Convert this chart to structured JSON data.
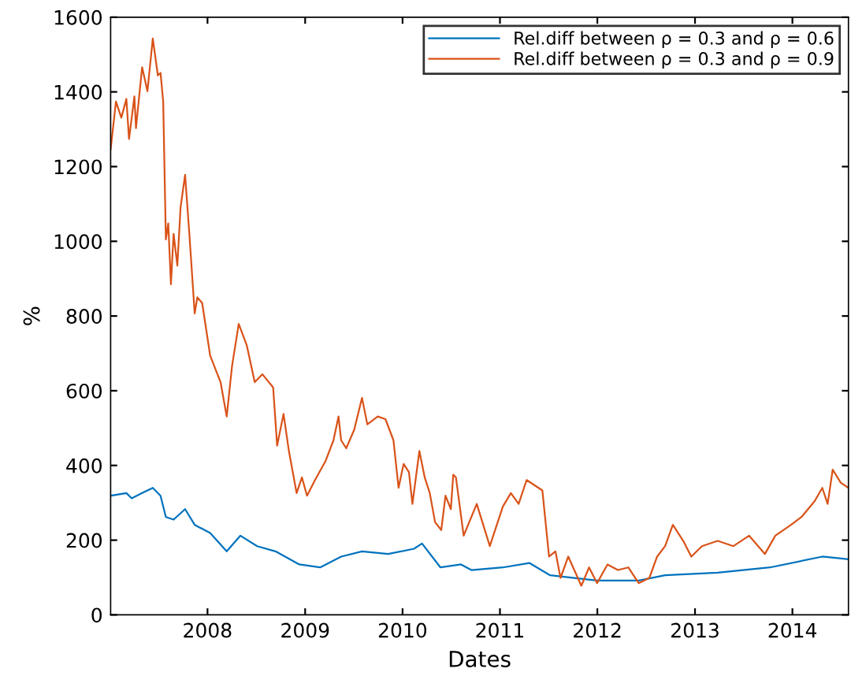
{
  "chart_data": {
    "type": "line",
    "xlabel": "Dates",
    "ylabel": "%",
    "xlim": [
      "2007-01-03",
      "2014-07-30"
    ],
    "xticks": [
      {
        "value": "2008-01-01",
        "label": "2008"
      },
      {
        "value": "2009-01-01",
        "label": "2009"
      },
      {
        "value": "2010-01-01",
        "label": "2010"
      },
      {
        "value": "2011-01-01",
        "label": "2011"
      },
      {
        "value": "2012-01-01",
        "label": "2012"
      },
      {
        "value": "2013-01-01",
        "label": "2013"
      },
      {
        "value": "2014-01-01",
        "label": "2014"
      }
    ],
    "ylim": [
      0,
      1600
    ],
    "yticks": [
      0,
      200,
      400,
      600,
      800,
      1000,
      1200,
      1400,
      1600
    ],
    "grid": false,
    "legend": "top right",
    "marker": "none",
    "line_style": "solid",
    "series": [
      {
        "name": "Rel.diff between ρ = 0.3 and ρ = 0.6",
        "color": "#0072bd",
        "x": [
          "2007-01-03",
          "2007-03-03",
          "2007-03-23",
          "2007-05-01",
          "2007-06-10",
          "2007-07-09",
          "2007-07-29",
          "2007-08-27",
          "2007-10-09",
          "2007-11-14",
          "2008-01-11",
          "2008-03-13",
          "2008-05-03",
          "2008-07-05",
          "2008-09-12",
          "2008-12-10",
          "2009-02-26",
          "2009-05-16",
          "2009-08-02",
          "2009-11-08",
          "2010-02-13",
          "2010-03-15",
          "2010-05-23",
          "2010-08-08",
          "2010-09-16",
          "2011-01-12",
          "2011-04-21",
          "2011-07-08",
          "2011-12-31",
          "2012-06-04",
          "2012-09-11",
          "2013-03-27",
          "2013-10-09",
          "2014-04-23",
          "2014-07-30"
        ],
        "values": [
          319,
          326,
          312,
          326,
          340,
          319,
          262,
          255,
          283,
          241,
          219,
          170,
          212,
          184,
          170,
          135,
          127,
          156,
          170,
          163,
          177,
          191,
          127,
          135,
          120,
          127,
          139,
          106,
          92,
          92,
          106,
          113,
          127,
          156,
          149
        ]
      },
      {
        "name": "Rel.diff between ρ = 0.3 and ρ = 0.9",
        "color": "#d95319",
        "x": [
          "2007-01-03",
          "2007-01-23",
          "2007-02-12",
          "2007-03-03",
          "2007-03-13",
          "2007-04-02",
          "2007-04-08",
          "2007-05-01",
          "2007-05-21",
          "2007-06-10",
          "2007-06-29",
          "2007-07-09",
          "2007-07-19",
          "2007-07-29",
          "2007-08-07",
          "2007-08-17",
          "2007-08-27",
          "2007-09-10",
          "2007-09-22",
          "2007-10-09",
          "2007-10-25",
          "2007-11-14",
          "2007-11-24",
          "2007-12-12",
          "2008-01-11",
          "2008-02-19",
          "2008-03-13",
          "2008-04-02",
          "2008-04-27",
          "2008-05-27",
          "2008-06-26",
          "2008-07-25",
          "2008-09-03",
          "2008-09-18",
          "2008-10-12",
          "2008-11-01",
          "2008-11-30",
          "2008-12-20",
          "2009-01-08",
          "2009-02-07",
          "2009-03-18",
          "2009-04-17",
          "2009-05-06",
          "2009-05-16",
          "2009-06-04",
          "2009-07-04",
          "2009-08-02",
          "2009-08-22",
          "2009-09-30",
          "2009-10-29",
          "2009-11-28",
          "2009-12-17",
          "2010-01-05",
          "2010-01-25",
          "2010-02-07",
          "2010-03-05",
          "2010-03-25",
          "2010-04-13",
          "2010-05-03",
          "2010-05-26",
          "2010-06-11",
          "2010-07-01",
          "2010-07-10",
          "2010-07-20",
          "2010-08-18",
          "2010-10-06",
          "2010-11-24",
          "2011-01-12",
          "2011-02-11",
          "2011-03-12",
          "2011-04-11",
          "2011-06-09",
          "2011-07-04",
          "2011-07-28",
          "2011-08-16",
          "2011-09-14",
          "2011-11-02",
          "2011-12-01",
          "2011-12-31",
          "2012-02-08",
          "2012-03-18",
          "2012-04-26",
          "2012-06-04",
          "2012-07-14",
          "2012-08-12",
          "2012-09-11",
          "2012-10-10",
          "2012-11-18",
          "2012-12-18",
          "2013-01-27",
          "2013-03-27",
          "2013-05-25",
          "2013-07-23",
          "2013-09-20",
          "2013-10-29",
          "2013-12-27",
          "2014-02-04",
          "2014-03-25",
          "2014-04-23",
          "2014-05-13",
          "2014-06-01",
          "2014-07-01",
          "2014-07-30"
        ],
        "values": [
          1246,
          1374,
          1331,
          1381,
          1274,
          1388,
          1303,
          1466,
          1402,
          1543,
          1444,
          1451,
          1374,
          1005,
          1048,
          885,
          1020,
          935,
          1090,
          1178,
          1020,
          807,
          850,
          835,
          694,
          623,
          531,
          666,
          779,
          722,
          623,
          644,
          609,
          453,
          538,
          439,
          326,
          368,
          319,
          361,
          411,
          467,
          531,
          467,
          446,
          496,
          581,
          510,
          531,
          524,
          467,
          340,
          404,
          382,
          297,
          439,
          368,
          326,
          248,
          227,
          319,
          283,
          375,
          368,
          212,
          297,
          184,
          290,
          326,
          297,
          361,
          333,
          156,
          170,
          99,
          156,
          78,
          127,
          85,
          135,
          120,
          127,
          85,
          99,
          156,
          184,
          241,
          198,
          156,
          184,
          198,
          184,
          212,
          163,
          212,
          241,
          262,
          304,
          340,
          297,
          389,
          354,
          340
        ]
      }
    ]
  }
}
